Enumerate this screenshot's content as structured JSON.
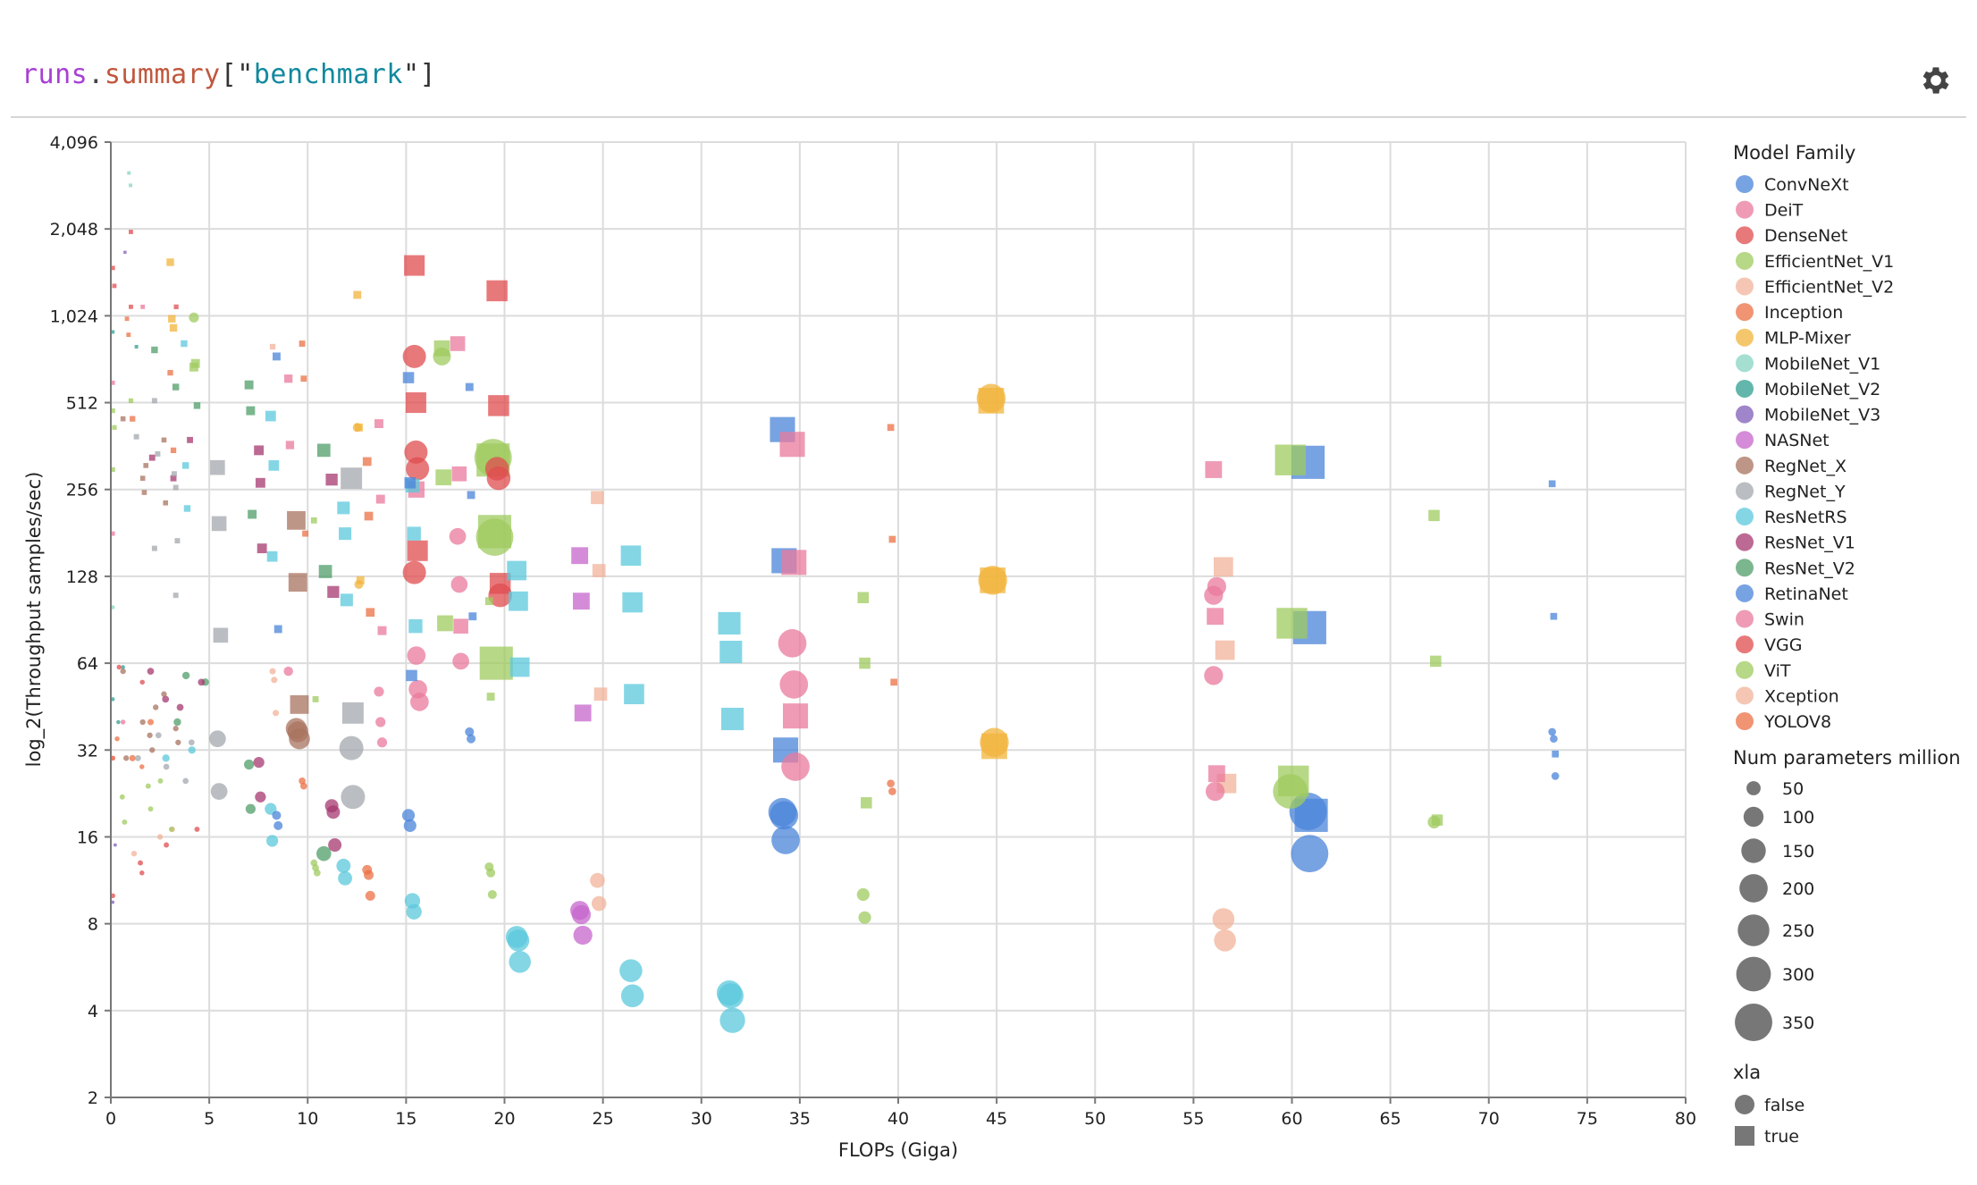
{
  "header": {
    "title_segments": [
      {
        "text": "runs",
        "color": "#a83fd4"
      },
      {
        "text": ".",
        "color": "#444444"
      },
      {
        "text": "summary",
        "color": "#c0573c"
      },
      {
        "text": "[\"",
        "color": "#333333"
      },
      {
        "text": "benchmark",
        "color": "#12899e"
      },
      {
        "text": "\"]",
        "color": "#333333"
      }
    ],
    "settings_icon": "gear-icon"
  },
  "chart_data": {
    "type": "scatter",
    "xlabel": "FLOPs (Giga)",
    "ylabel": "log_2(Throughput samples/sec)",
    "x_range": [
      0,
      80
    ],
    "x_ticks": [
      0,
      5,
      10,
      15,
      20,
      25,
      30,
      35,
      40,
      45,
      50,
      55,
      60,
      65,
      70,
      75,
      80
    ],
    "y_scale": "log2",
    "y_range": [
      2,
      4096
    ],
    "y_ticks": [
      2,
      4,
      8,
      16,
      32,
      64,
      128,
      256,
      512,
      1024,
      2048,
      4096
    ],
    "y_tick_labels": [
      "2",
      "4",
      "8",
      "16",
      "32",
      "64",
      "128",
      "256",
      "512",
      "1,024",
      "2,048",
      "4,096"
    ],
    "grid": true,
    "legend_placement": "right",
    "marker_opacity": 0.75,
    "color_legend": {
      "title": "Model Family",
      "families": [
        {
          "name": "ConvNeXt",
          "color": "#4a84d9"
        },
        {
          "name": "DeiT",
          "color": "#ea7a9c"
        },
        {
          "name": "DenseNet",
          "color": "#e04c4f"
        },
        {
          "name": "EfficientNet_V1",
          "color": "#9fcb5f"
        },
        {
          "name": "EfficientNet_V2",
          "color": "#f2b39a"
        },
        {
          "name": "Inception",
          "color": "#eb7044"
        },
        {
          "name": "MLP-Mixer",
          "color": "#f2b43c"
        },
        {
          "name": "MobileNet_V1",
          "color": "#86d4c3"
        },
        {
          "name": "MobileNet_V2",
          "color": "#2f9e8f"
        },
        {
          "name": "MobileNet_V3",
          "color": "#7f5cb8"
        },
        {
          "name": "NASNet",
          "color": "#c665cc"
        },
        {
          "name": "RegNet_X",
          "color": "#a8735f"
        },
        {
          "name": "RegNet_Y",
          "color": "#a3a8ae"
        },
        {
          "name": "ResNetRS",
          "color": "#5bc8dc"
        },
        {
          "name": "ResNet_V1",
          "color": "#a5386f"
        },
        {
          "name": "ResNet_V2",
          "color": "#4f9e69"
        },
        {
          "name": "RetinaNet",
          "color": "#4a84d9"
        },
        {
          "name": "Swin",
          "color": "#ea7a9c"
        },
        {
          "name": "VGG",
          "color": "#e04c4f"
        },
        {
          "name": "ViT",
          "color": "#9fcb5f"
        },
        {
          "name": "Xception",
          "color": "#f2b39a"
        },
        {
          "name": "YOLOV8",
          "color": "#eb7044"
        }
      ]
    },
    "size_legend": {
      "title": "Num parameters million",
      "values": [
        50,
        100,
        150,
        200,
        250,
        300,
        350
      ],
      "labels": [
        "50",
        "100",
        "150",
        "200",
        "250",
        "300",
        "350"
      ],
      "color": "#777777"
    },
    "shape_legend": {
      "title": "xla",
      "items": [
        {
          "label": "false",
          "shape": "circle"
        },
        {
          "label": "true",
          "shape": "square"
        }
      ]
    },
    "point_fields": [
      "family",
      "flops_giga",
      "throughput",
      "params_million",
      "xla"
    ],
    "groups": [
      [
        "RetinaNet",
        73.3,
        15,
        [
          268,
          93,
          31
        ],
        [
          37,
          35,
          26
        ]
      ],
      [
        "ViT",
        67.3,
        40,
        [
          208,
          65,
          18.3
        ],
        [
          18
        ]
      ],
      [
        "ConvNeXt",
        60.9,
        350,
        [
          318,
          85,
          19
        ],
        [
          19.6,
          14
        ]
      ],
      [
        "ViT",
        60,
        300,
        [
          324,
          88,
          25
        ],
        [
          23
        ]
      ],
      [
        "Swin",
        56.1,
        90,
        [
          300,
          93,
          26.5
        ],
        [
          58,
          23,
          118,
          110
        ]
      ],
      [
        "EfficientNet_V2",
        56.6,
        120,
        [
          138,
          71,
          24.5
        ],
        [
          8.3,
          7.0
        ]
      ],
      [
        "MLP-Mixer",
        44.8,
        210,
        [
          520,
          124,
          33
        ],
        [
          530,
          124,
          34
        ]
      ],
      [
        "Inception",
        39.7,
        15,
        [
          420,
          172,
          55
        ],
        [
          24.5,
          23
        ]
      ],
      [
        "ViT",
        38.3,
        40,
        [
          108,
          64,
          21
        ],
        [
          10.1,
          8.4
        ]
      ],
      [
        "ConvNeXt",
        34.2,
        200,
        [
          413,
          145,
          32
        ],
        [
          19.5,
          19,
          15.6
        ]
      ],
      [
        "Swin",
        34.7,
        200,
        [
          367,
          143,
          42
        ],
        [
          75,
          54,
          28
        ]
      ],
      [
        "ResNetRS",
        31.5,
        160,
        [
          88,
          70,
          41
        ],
        [
          4.6,
          4.5,
          3.7
        ]
      ],
      [
        "ResNetRS",
        26.5,
        130,
        [
          151,
          104,
          50
        ],
        [
          5.5,
          4.5
        ]
      ],
      [
        "NASNet",
        23.9,
        90,
        [
          151,
          105,
          43
        ],
        [
          8.9,
          8.6,
          7.3
        ]
      ],
      [
        "EfficientNet_V2",
        24.8,
        55,
        [
          240,
          134,
          50
        ],
        [
          11.3,
          9.4
        ]
      ],
      [
        "ResNetRS",
        20.7,
        120,
        [
          134,
          105,
          62
        ],
        [
          7.2,
          7.0,
          5.9
        ]
      ],
      [
        "ViT",
        19.5,
        350,
        [
          324,
          183,
          64
        ],
        [
          330,
          175
        ]
      ],
      [
        "VGG",
        19.7,
        140,
        [
          1250,
          500,
          121
        ],
        [
          302,
          280,
          110
        ]
      ],
      [
        "ViT",
        19.3,
        20,
        [
          105,
          49
        ],
        [
          12.6,
          12,
          10.1
        ]
      ],
      [
        "Swin",
        17.7,
        70,
        [
          820,
          290,
          86
        ],
        [
          176,
          120,
          65
        ]
      ],
      [
        "ViT",
        16.9,
        80,
        [
          790,
          282,
          88
        ],
        [
          740
        ]
      ],
      [
        "VGG",
        15.5,
        135,
        [
          1530,
          512,
          157
        ],
        [
          740,
          345,
          302,
          132
        ]
      ],
      [
        "DeiT",
        15.6,
        85,
        [
          256
        ],
        [
          68,
          52,
          47
        ]
      ],
      [
        "RetinaNet",
        15.2,
        40,
        [
          625,
          270,
          58
        ],
        [
          19,
          17.5
        ]
      ],
      [
        "ResNetRS",
        15.4,
        60,
        [
          264,
          180,
          86
        ],
        [
          9.6,
          8.8
        ]
      ],
      [
        "RetinaNet",
        18.3,
        20,
        [
          580,
          245,
          93
        ],
        [
          37,
          35
        ]
      ],
      [
        "DeiT",
        13.7,
        25,
        [
          433,
          237,
          83
        ],
        [
          51,
          40,
          34
        ]
      ],
      [
        "ResNetRS",
        11.9,
        50,
        [
          221,
          180,
          106
        ],
        [
          12.7,
          11.5
        ]
      ],
      [
        "RegNet_Y",
        12.3,
        145,
        [
          280,
          43
        ],
        [
          32.5,
          22
        ]
      ],
      [
        "MLP-Mixer",
        12.6,
        20,
        [
          1210,
          420,
          124
        ],
        [
          420,
          120
        ]
      ],
      [
        "Inception",
        13.1,
        24,
        [
          320,
          207,
          96
        ],
        [
          12.3,
          11.8,
          10
        ]
      ],
      [
        "ResNet_V1",
        11.3,
        45,
        [
          277,
          113
        ],
        [
          20.5,
          19.5,
          15
        ]
      ],
      [
        "RegNet_X",
        9.5,
        110,
        [
          200,
          122,
          46
        ],
        [
          38,
          37,
          35
        ]
      ],
      [
        "ResNet_V2",
        10.9,
        55,
        [
          350,
          133
        ],
        [
          14
        ]
      ],
      [
        "DeiT",
        9.1,
        22,
        [
          620,
          365
        ],
        [
          60
        ]
      ],
      [
        "ResNetRS",
        8.2,
        35,
        [
          460,
          150,
          310
        ],
        [
          20,
          15.5
        ]
      ],
      [
        "RetinaNet",
        8.5,
        20,
        [
          740,
          84
        ],
        [
          19,
          17.5
        ]
      ],
      [
        "ResNet_V2",
        7.1,
        25,
        [
          590,
          480,
          210
        ],
        [
          28.5,
          20
        ]
      ],
      [
        "ResNet_V1",
        7.6,
        30,
        [
          350,
          270,
          160
        ],
        [
          29,
          22
        ]
      ],
      [
        "RegNet_Y",
        5.5,
        70,
        [
          305,
          195,
          80
        ],
        [
          35,
          23
        ]
      ],
      [
        "MLP-Mixer",
        3.1,
        18,
        [
          1570,
          1000,
          930
        ],
        []
      ],
      [
        "ViT",
        4.3,
        25,
        [
          680,
          700
        ],
        [
          1010
        ]
      ],
      [
        "Inception",
        9.8,
        12,
        [
          820,
          620,
          180
        ],
        [
          25,
          24
        ]
      ],
      [
        "EfficientNet_V2",
        8.3,
        10,
        [
          800
        ],
        [
          60,
          56,
          43
        ]
      ],
      [
        "EfficientNet_V1",
        10.4,
        12,
        [
          200,
          48
        ],
        [
          13,
          12.5,
          12
        ]
      ],
      [
        "MobileNet_V1",
        0.5,
        4,
        [
          3200,
          2900
        ],
        [
          100
        ]
      ],
      [
        "DenseNet",
        0.6,
        6,
        [
          2000,
          1500,
          1300,
          1100
        ],
        [
          62,
          55,
          12,
          10
        ]
      ],
      [
        "MobileNet_V3",
        0.3,
        3,
        [
          1700
        ],
        [
          15,
          9.5
        ]
      ],
      [
        "RegNet_X",
        2.2,
        8,
        [
          450,
          380,
          310,
          280,
          250,
          230
        ],
        [
          60,
          50,
          45,
          40,
          38,
          36,
          34,
          32,
          30
        ]
      ],
      [
        "RegNet_Y",
        2.8,
        9,
        [
          520,
          390,
          340,
          290,
          260,
          170,
          160,
          110
        ],
        [
          36,
          34,
          30,
          28,
          25
        ]
      ],
      [
        "EfficientNet_V1",
        1.6,
        7,
        [
          520,
          480,
          420,
          300
        ],
        [
          25,
          24,
          22,
          20,
          18,
          17
        ]
      ],
      [
        "ResNet_V1",
        3.6,
        12,
        [
          380,
          330,
          280
        ],
        [
          60,
          55,
          48,
          45
        ]
      ],
      [
        "ResNet_V2",
        3.8,
        14,
        [
          780,
          580,
          500
        ],
        [
          58,
          55,
          40
        ]
      ],
      [
        "MobileNet_V2",
        0.8,
        4,
        [
          900,
          800
        ],
        [
          62,
          48,
          40
        ]
      ],
      [
        "Inception",
        2.6,
        10,
        [
          650,
          450,
          350
        ],
        [
          40,
          30
        ]
      ],
      [
        "ResNetRS",
        4.3,
        14,
        [
          820,
          310,
          220
        ],
        [
          32,
          30
        ]
      ],
      [
        "DeiT",
        1.2,
        6,
        [
          1100,
          600,
          180
        ],
        [
          40,
          30
        ]
      ],
      [
        "Xception",
        1.8,
        8,
        [],
        [
          17,
          16,
          14
        ]
      ],
      [
        "DenseNet",
        2.9,
        7,
        [
          1100
        ],
        [
          15,
          13,
          17
        ]
      ],
      [
        "YOLOV8",
        1.4,
        6,
        [
          1000,
          880
        ],
        [
          35,
          30,
          28
        ]
      ]
    ]
  }
}
